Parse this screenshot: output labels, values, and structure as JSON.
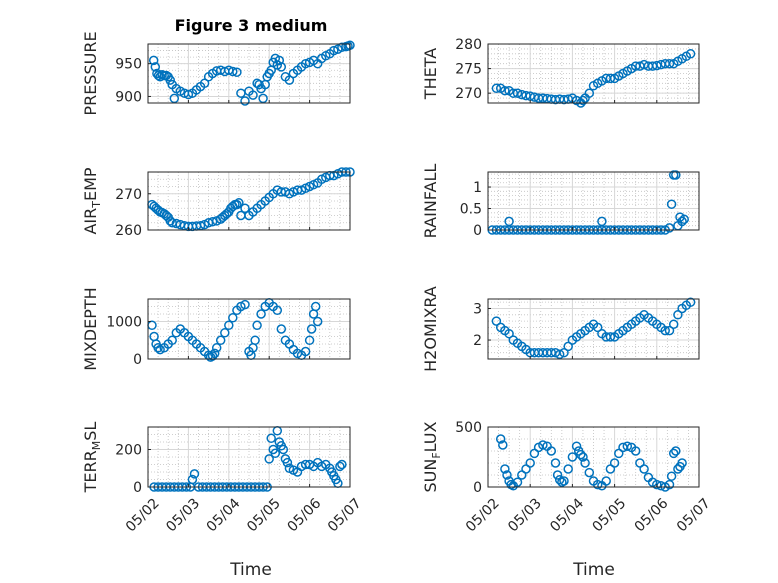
{
  "figure": {
    "marker_color": "#0072BD",
    "x_tick_labels": [
      "05/02",
      "05/03",
      "05/04",
      "05/05",
      "05/06",
      "05/07"
    ],
    "xlabel": "Time"
  },
  "chart_data": [
    {
      "type": "scatter",
      "title": "Figure 3 medium",
      "ylabel": "PRESSURE",
      "ylim": [
        890,
        980
      ],
      "yticks": [
        900,
        950
      ],
      "xlim": [
        0,
        5
      ],
      "x": [
        0.14,
        0.18,
        0.22,
        0.26,
        0.3,
        0.35,
        0.4,
        0.45,
        0.5,
        0.55,
        0.6,
        0.65,
        0.7,
        0.8,
        0.9,
        1.0,
        1.1,
        1.2,
        1.3,
        1.4,
        1.5,
        1.6,
        1.7,
        1.8,
        1.9,
        2.0,
        2.1,
        2.2,
        2.3,
        2.4,
        2.5,
        2.6,
        2.7,
        2.75,
        2.8,
        2.85,
        2.9,
        2.95,
        3.0,
        3.05,
        3.1,
        3.15,
        3.2,
        3.25,
        3.3,
        3.4,
        3.5,
        3.6,
        3.7,
        3.8,
        3.9,
        4.0,
        4.1,
        4.2,
        4.3,
        4.4,
        4.5,
        4.6,
        4.7,
        4.8,
        4.9,
        4.95,
        5.0
      ],
      "values": [
        955,
        945,
        935,
        932,
        930,
        933,
        932,
        932,
        930,
        925,
        918,
        897,
        912,
        908,
        905,
        903,
        905,
        910,
        915,
        920,
        930,
        935,
        939,
        940,
        938,
        940,
        938,
        937,
        905,
        893,
        908,
        902,
        920,
        918,
        912,
        897,
        918,
        930,
        935,
        940,
        952,
        958,
        948,
        955,
        945,
        930,
        925,
        935,
        940,
        945,
        950,
        952,
        955,
        950,
        958,
        962,
        965,
        970,
        972,
        975,
        976,
        977,
        978
      ]
    },
    {
      "type": "scatter",
      "ylabel": "THETA",
      "ylim": [
        268,
        280
      ],
      "yticks": [
        270,
        275,
        280
      ],
      "xlim": [
        0,
        5
      ],
      "x": [
        0.2,
        0.3,
        0.4,
        0.5,
        0.6,
        0.7,
        0.8,
        0.9,
        1.0,
        1.1,
        1.2,
        1.3,
        1.4,
        1.5,
        1.6,
        1.7,
        1.8,
        1.9,
        2.0,
        2.1,
        2.2,
        2.25,
        2.3,
        2.4,
        2.5,
        2.6,
        2.7,
        2.8,
        2.9,
        3.0,
        3.1,
        3.2,
        3.3,
        3.4,
        3.5,
        3.6,
        3.7,
        3.8,
        3.9,
        4.0,
        4.1,
        4.2,
        4.3,
        4.4,
        4.5,
        4.6,
        4.7,
        4.8
      ],
      "values": [
        271,
        271,
        270.5,
        270.5,
        270,
        270,
        269.7,
        269.5,
        269.4,
        269.2,
        269,
        269,
        268.9,
        268.8,
        268.7,
        268.8,
        268.7,
        268.8,
        269,
        268.5,
        268,
        268.5,
        269,
        270,
        271.5,
        272,
        272.5,
        273,
        273,
        273,
        273.5,
        274,
        274.5,
        275,
        275.5,
        275.5,
        275.8,
        275.5,
        275.5,
        275.6,
        275.8,
        276,
        276,
        276,
        276.5,
        277,
        277.5,
        278
      ]
    },
    {
      "type": "scatter",
      "ylabel": "AIR_TEMP",
      "ylim": [
        260,
        276
      ],
      "yticks": [
        260,
        270
      ],
      "xlim": [
        0,
        5
      ],
      "x": [
        0.1,
        0.15,
        0.2,
        0.25,
        0.3,
        0.35,
        0.4,
        0.45,
        0.5,
        0.55,
        0.6,
        0.7,
        0.8,
        0.9,
        1.0,
        1.1,
        1.2,
        1.3,
        1.4,
        1.5,
        1.6,
        1.7,
        1.8,
        1.85,
        1.9,
        1.95,
        2.0,
        2.05,
        2.1,
        2.15,
        2.2,
        2.25,
        2.3,
        2.4,
        2.5,
        2.6,
        2.7,
        2.8,
        2.9,
        3.0,
        3.1,
        3.2,
        3.3,
        3.4,
        3.5,
        3.6,
        3.7,
        3.8,
        3.9,
        4.0,
        4.1,
        4.2,
        4.3,
        4.4,
        4.5,
        4.6,
        4.7,
        4.8,
        4.9,
        5.0
      ],
      "values": [
        267,
        266.5,
        266,
        265.5,
        265,
        264.8,
        264.5,
        264,
        263.5,
        262.5,
        262,
        261.8,
        261.5,
        261.2,
        261,
        261,
        261.1,
        261.2,
        261.5,
        262,
        262.3,
        262.5,
        263,
        263.5,
        264,
        264.5,
        265,
        266,
        266.5,
        267,
        267,
        267.5,
        264,
        266,
        264,
        265,
        266,
        267,
        268,
        269,
        270,
        271,
        270.5,
        270.5,
        270,
        270.5,
        271,
        271,
        271.5,
        272,
        272.5,
        273,
        274,
        274.5,
        275,
        275,
        275.5,
        276,
        276,
        276
      ]
    },
    {
      "type": "scatter",
      "ylabel": "RAINFALL",
      "ylim": [
        0,
        1.35
      ],
      "yticks": [
        0,
        0.5,
        1
      ],
      "xlim": [
        0,
        5
      ],
      "x": [
        0.1,
        0.2,
        0.3,
        0.4,
        0.5,
        0.6,
        0.7,
        0.8,
        0.9,
        1.0,
        1.1,
        1.2,
        1.3,
        1.4,
        1.5,
        1.6,
        1.7,
        1.8,
        1.9,
        2.0,
        2.1,
        2.2,
        2.3,
        2.4,
        2.5,
        2.6,
        2.7,
        2.8,
        2.9,
        3.0,
        3.1,
        3.2,
        3.3,
        3.4,
        3.5,
        3.6,
        3.7,
        3.8,
        3.9,
        4.0,
        4.1,
        4.2,
        4.3,
        4.35,
        4.4,
        4.45,
        4.5,
        4.55,
        4.6,
        4.65,
        0.5,
        2.7
      ],
      "values": [
        0,
        0,
        0,
        0,
        0,
        0,
        0,
        0,
        0,
        0,
        0,
        0,
        0,
        0,
        0,
        0,
        0,
        0,
        0,
        0,
        0,
        0,
        0,
        0,
        0,
        0,
        0,
        0,
        0,
        0,
        0,
        0,
        0,
        0,
        0,
        0,
        0,
        0,
        0,
        0,
        0,
        0,
        0.05,
        0.6,
        1.28,
        1.28,
        0.1,
        0.3,
        0.2,
        0.25,
        0.2,
        0.2
      ]
    },
    {
      "type": "scatter",
      "ylabel": "MIXDEPTH",
      "ylim": [
        0,
        1600
      ],
      "yticks": [
        0,
        1000
      ],
      "xlim": [
        0,
        5
      ],
      "x": [
        0.1,
        0.15,
        0.2,
        0.25,
        0.3,
        0.4,
        0.5,
        0.6,
        0.7,
        0.8,
        0.9,
        1.0,
        1.1,
        1.2,
        1.3,
        1.4,
        1.5,
        1.55,
        1.6,
        1.65,
        1.7,
        1.8,
        1.9,
        2.0,
        2.1,
        2.2,
        2.3,
        2.4,
        2.5,
        2.55,
        2.6,
        2.65,
        2.7,
        2.8,
        2.9,
        3.0,
        3.1,
        3.2,
        3.3,
        3.4,
        3.5,
        3.6,
        3.7,
        3.8,
        3.9,
        4.0,
        4.05,
        4.1,
        4.15,
        4.2
      ],
      "values": [
        900,
        600,
        400,
        300,
        250,
        300,
        400,
        500,
        700,
        800,
        700,
        600,
        500,
        400,
        300,
        200,
        100,
        50,
        80,
        150,
        300,
        500,
        700,
        900,
        1100,
        1300,
        1400,
        1450,
        200,
        100,
        300,
        500,
        900,
        1200,
        1400,
        1500,
        1400,
        1300,
        800,
        500,
        400,
        250,
        150,
        100,
        200,
        500,
        800,
        1200,
        1400,
        1000
      ]
    },
    {
      "type": "scatter",
      "ylabel": "H2OMIXRA",
      "ylim": [
        1.4,
        3.3
      ],
      "yticks": [
        2,
        3
      ],
      "xlim": [
        0,
        5
      ],
      "x": [
        0.2,
        0.3,
        0.4,
        0.5,
        0.6,
        0.7,
        0.8,
        0.9,
        1.0,
        1.1,
        1.2,
        1.3,
        1.4,
        1.5,
        1.6,
        1.7,
        1.8,
        1.9,
        2.0,
        2.1,
        2.2,
        2.3,
        2.4,
        2.5,
        2.6,
        2.7,
        2.8,
        2.9,
        3.0,
        3.1,
        3.2,
        3.3,
        3.4,
        3.5,
        3.6,
        3.7,
        3.8,
        3.9,
        4.0,
        4.1,
        4.2,
        4.3,
        4.4,
        4.5,
        4.6,
        4.7,
        4.8
      ],
      "values": [
        2.6,
        2.4,
        2.3,
        2.2,
        2,
        1.9,
        1.8,
        1.7,
        1.6,
        1.6,
        1.6,
        1.6,
        1.6,
        1.6,
        1.6,
        1.55,
        1.6,
        1.8,
        2,
        2.1,
        2.2,
        2.3,
        2.4,
        2.5,
        2.4,
        2.2,
        2.1,
        2.1,
        2.1,
        2.2,
        2.3,
        2.4,
        2.5,
        2.6,
        2.7,
        2.8,
        2.7,
        2.6,
        2.5,
        2.4,
        2.3,
        2.3,
        2.5,
        2.8,
        3,
        3.1,
        3.2
      ]
    },
    {
      "type": "scatter",
      "ylabel": "TERR_MSL",
      "ylim": [
        0,
        320
      ],
      "yticks": [
        0,
        200
      ],
      "xlim": [
        0,
        5
      ],
      "x": [
        0.15,
        0.25,
        0.35,
        0.45,
        0.55,
        0.65,
        0.75,
        0.85,
        0.95,
        1.05,
        1.1,
        1.15,
        1.25,
        1.35,
        1.45,
        1.55,
        1.65,
        1.75,
        1.85,
        1.95,
        2.05,
        2.15,
        2.25,
        2.35,
        2.45,
        2.55,
        2.65,
        2.75,
        2.85,
        2.95,
        3.0,
        3.05,
        3.1,
        3.15,
        3.2,
        3.25,
        3.3,
        3.35,
        3.4,
        3.45,
        3.5,
        3.6,
        3.7,
        3.8,
        3.9,
        4.0,
        4.1,
        4.2,
        4.3,
        4.4,
        4.5,
        4.55,
        4.6,
        4.65,
        4.7,
        4.75,
        4.8
      ],
      "values": [
        0,
        0,
        0,
        0,
        0,
        0,
        0,
        0,
        0,
        0,
        40,
        70,
        0,
        0,
        0,
        0,
        0,
        0,
        0,
        0,
        0,
        0,
        0,
        0,
        0,
        0,
        0,
        0,
        0,
        0,
        150,
        260,
        200,
        180,
        300,
        240,
        220,
        200,
        150,
        130,
        100,
        90,
        80,
        110,
        120,
        120,
        110,
        130,
        110,
        120,
        100,
        80,
        60,
        40,
        20,
        110,
        120
      ]
    },
    {
      "type": "scatter",
      "ylabel": "SUN_FLUX",
      "ylim": [
        0,
        500
      ],
      "yticks": [
        0,
        500
      ],
      "xlim": [
        0,
        5
      ],
      "x": [
        0.3,
        0.35,
        0.4,
        0.45,
        0.5,
        0.55,
        0.6,
        0.7,
        0.8,
        0.9,
        1.0,
        1.1,
        1.2,
        1.3,
        1.4,
        1.5,
        1.6,
        1.65,
        1.7,
        1.75,
        1.8,
        1.9,
        2.0,
        2.1,
        2.15,
        2.2,
        2.25,
        2.3,
        2.4,
        2.5,
        2.6,
        2.7,
        2.8,
        2.9,
        3.0,
        3.1,
        3.2,
        3.3,
        3.4,
        3.5,
        3.6,
        3.7,
        3.8,
        3.9,
        4.0,
        4.1,
        4.2,
        4.3,
        4.35,
        4.4,
        4.45,
        4.5,
        4.55,
        4.6
      ],
      "values": [
        400,
        350,
        150,
        100,
        50,
        20,
        10,
        40,
        100,
        150,
        200,
        280,
        330,
        350,
        340,
        300,
        200,
        100,
        60,
        40,
        50,
        150,
        250,
        340,
        300,
        270,
        250,
        200,
        120,
        50,
        20,
        10,
        50,
        150,
        200,
        280,
        330,
        340,
        330,
        300,
        200,
        150,
        80,
        40,
        20,
        10,
        0,
        20,
        90,
        280,
        300,
        150,
        170,
        200
      ]
    }
  ]
}
